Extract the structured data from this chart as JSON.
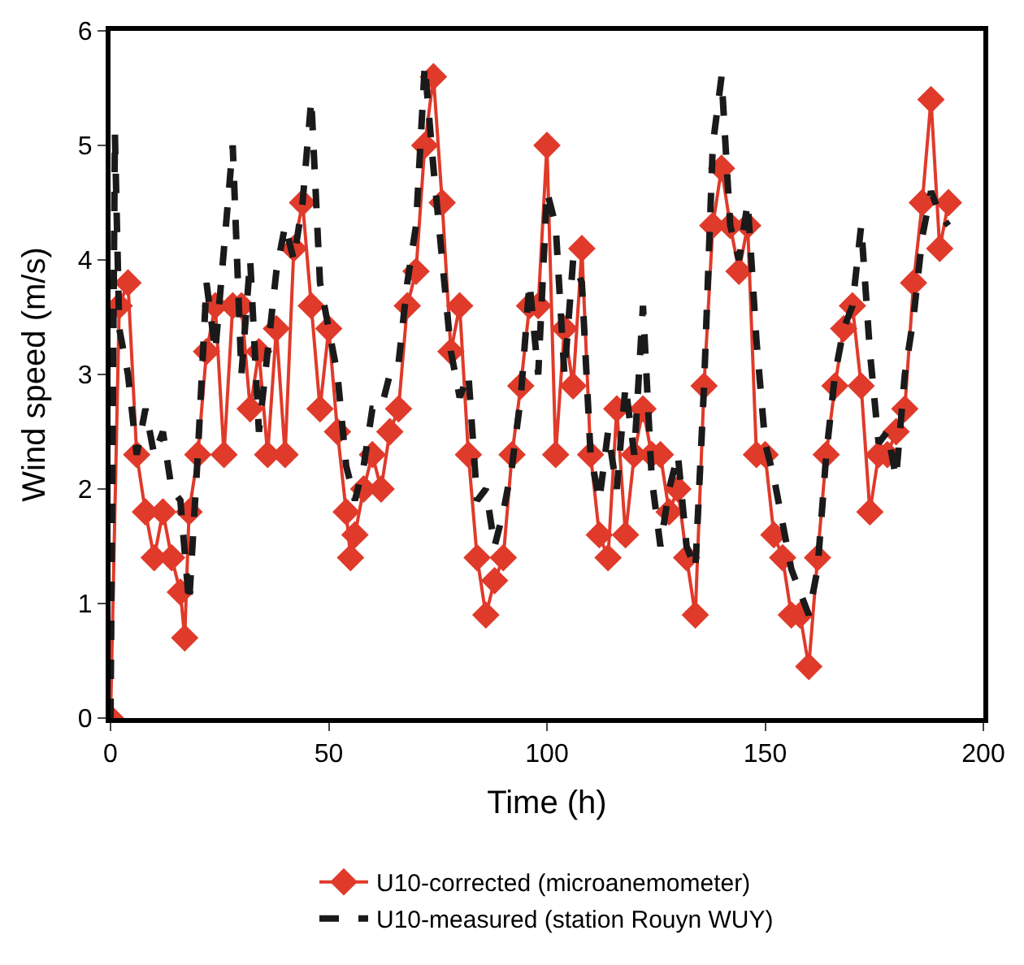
{
  "chart_data": {
    "type": "line",
    "xlabel": "Time (h)",
    "ylabel": "Wind speed (m/s)",
    "xlim": [
      0,
      200
    ],
    "xticks": [
      0,
      50,
      100,
      150,
      200
    ],
    "ylim": [
      0,
      6
    ],
    "yticks": [
      0,
      1,
      2,
      3,
      4,
      5,
      6
    ],
    "legend": "bottom",
    "series": [
      {
        "name": "U10-corrected (microanemometer)",
        "color": "#e03a2a",
        "marker": "diamond",
        "line_style": "solid",
        "x": [
          0,
          2,
          4,
          6,
          8,
          10,
          12,
          14,
          16,
          17,
          18,
          20,
          22,
          24,
          26,
          28,
          30,
          32,
          34,
          36,
          38,
          40,
          42,
          44,
          46,
          48,
          50,
          52,
          54,
          55,
          56,
          58,
          60,
          62,
          64,
          66,
          68,
          70,
          72,
          74,
          76,
          78,
          80,
          82,
          84,
          86,
          88,
          90,
          92,
          94,
          96,
          98,
          100,
          102,
          104,
          106,
          108,
          110,
          112,
          114,
          116,
          118,
          120,
          122,
          124,
          126,
          128,
          130,
          132,
          134,
          136,
          138,
          140,
          142,
          144,
          146,
          148,
          150,
          152,
          154,
          156,
          158,
          160,
          162,
          164,
          166,
          168,
          170,
          172,
          174,
          176,
          178,
          180,
          182,
          184,
          186,
          188,
          190,
          192
        ],
        "values": [
          0,
          3.6,
          3.8,
          2.3,
          1.8,
          1.4,
          1.8,
          1.4,
          1.1,
          0.7,
          1.8,
          2.3,
          3.2,
          3.6,
          2.3,
          3.6,
          3.6,
          2.7,
          3.2,
          2.3,
          3.4,
          2.3,
          4.1,
          4.5,
          3.6,
          2.7,
          3.4,
          2.5,
          1.8,
          1.4,
          1.6,
          2.0,
          2.3,
          2.0,
          2.5,
          2.7,
          3.6,
          3.9,
          5.0,
          5.6,
          4.5,
          3.2,
          3.6,
          2.3,
          1.4,
          0.9,
          1.2,
          1.4,
          2.3,
          2.9,
          3.6,
          3.6,
          5.0,
          2.3,
          3.4,
          2.9,
          4.1,
          2.3,
          1.6,
          1.4,
          2.7,
          1.6,
          2.3,
          2.7,
          2.3,
          2.3,
          1.8,
          2.0,
          1.4,
          0.9,
          2.9,
          4.3,
          4.8,
          4.3,
          3.9,
          4.3,
          2.3,
          2.3,
          1.6,
          1.4,
          0.9,
          0.9,
          0.45,
          1.4,
          2.3,
          2.9,
          3.4,
          3.6,
          2.9,
          1.8,
          2.3,
          2.3,
          2.5,
          2.7,
          3.8,
          4.5,
          5.4,
          4.1,
          4.5
        ]
      },
      {
        "name": "U10-measured (station Rouyn WUY)",
        "color": "#1a1a1a",
        "marker": "none",
        "line_style": "dashed",
        "x": [
          0,
          1,
          2,
          4,
          6,
          8,
          10,
          12,
          14,
          16,
          18,
          20,
          22,
          24,
          26,
          28,
          30,
          32,
          34,
          36,
          38,
          40,
          42,
          44,
          46,
          48,
          50,
          52,
          54,
          56,
          58,
          60,
          62,
          64,
          66,
          68,
          70,
          72,
          74,
          76,
          78,
          80,
          82,
          84,
          86,
          88,
          90,
          92,
          94,
          96,
          98,
          100,
          102,
          104,
          106,
          108,
          110,
          112,
          114,
          116,
          118,
          120,
          122,
          124,
          126,
          128,
          130,
          132,
          134,
          136,
          138,
          140,
          142,
          144,
          146,
          148,
          150,
          152,
          154,
          156,
          158,
          160,
          162,
          164,
          166,
          168,
          170,
          172,
          174,
          176,
          178,
          180,
          182,
          184,
          186,
          188,
          190,
          192
        ],
        "values": [
          0,
          5.1,
          3.4,
          3.0,
          2.3,
          2.7,
          2.3,
          2.5,
          2.0,
          1.9,
          1.0,
          2.3,
          3.8,
          3.2,
          4.1,
          5.0,
          3.0,
          4.0,
          2.5,
          3.2,
          3.9,
          4.3,
          4.0,
          4.5,
          5.4,
          3.8,
          3.4,
          3.0,
          2.2,
          1.9,
          2.2,
          2.7,
          2.7,
          3.0,
          3.1,
          3.8,
          4.3,
          5.7,
          4.8,
          4.0,
          3.2,
          2.8,
          3.0,
          1.9,
          2.0,
          1.5,
          1.8,
          2.2,
          2.8,
          3.8,
          3.0,
          4.6,
          4.3,
          3.0,
          4.0,
          3.8,
          2.3,
          1.9,
          2.5,
          2.0,
          2.9,
          2.3,
          3.6,
          2.1,
          1.5,
          2.0,
          2.3,
          1.5,
          1.3,
          2.9,
          5.0,
          5.6,
          4.3,
          4.0,
          4.5,
          3.3,
          2.4,
          2.1,
          1.7,
          1.3,
          1.1,
          0.9,
          1.3,
          2.3,
          3.0,
          3.4,
          3.6,
          4.3,
          3.2,
          2.4,
          2.5,
          2.1,
          3.0,
          3.5,
          4.2,
          4.6,
          4.4,
          4.3
        ]
      }
    ]
  }
}
